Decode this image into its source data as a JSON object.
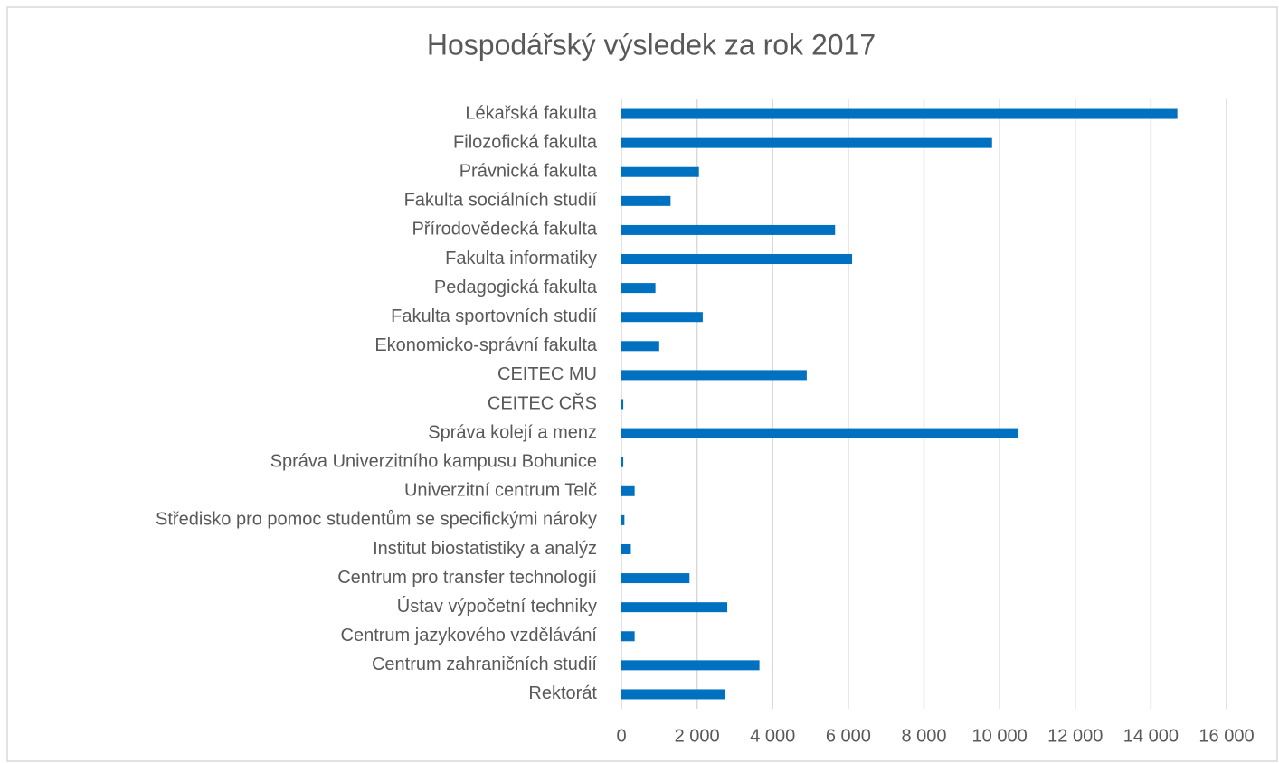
{
  "chart_data": {
    "type": "hbar",
    "title": "Hospodářský výsledek za rok 2017",
    "categories": [
      "Lékařská fakulta",
      "Filozofická fakulta",
      "Právnická fakulta",
      "Fakulta sociálních studií",
      "Přírodovědecká fakulta",
      "Fakulta informatiky",
      "Pedagogická fakulta",
      "Fakulta sportovních studií",
      "Ekonomicko-správní fakulta",
      "CEITEC MU",
      "CEITEC CŘS",
      "Správa kolejí a menz",
      "Správa Univerzitního kampusu Bohunice",
      "Univerzitní centrum Telč",
      "Středisko pro pomoc studentům se specifickými nároky",
      "Institut biostatistiky a analýz",
      "Centrum pro transfer technologií",
      "Ústav výpočetní techniky",
      "Centrum jazykového vzdělávání",
      "Centrum zahraničních studií",
      "Rektorát"
    ],
    "values": [
      14700,
      9800,
      2050,
      1300,
      5650,
      6100,
      900,
      2150,
      1000,
      4900,
      50,
      10500,
      50,
      350,
      80,
      250,
      1800,
      2800,
      350,
      3650,
      2750
    ],
    "color": "#0070c0",
    "xlim": [
      0,
      16000
    ],
    "xticks": [
      0,
      {
        "value": 2000,
        "label": "2 000"
      },
      {
        "value": 4000,
        "label": "4 000"
      },
      {
        "value": 6000,
        "label": "6 000"
      },
      {
        "value": 8000,
        "label": "8 000"
      },
      {
        "value": 10000,
        "label": "10 000"
      },
      {
        "value": 12000,
        "label": "12 000"
      },
      {
        "value": 14000,
        "label": "14 000"
      },
      {
        "value": 16000,
        "label": "16 000"
      }
    ],
    "grid": true
  }
}
